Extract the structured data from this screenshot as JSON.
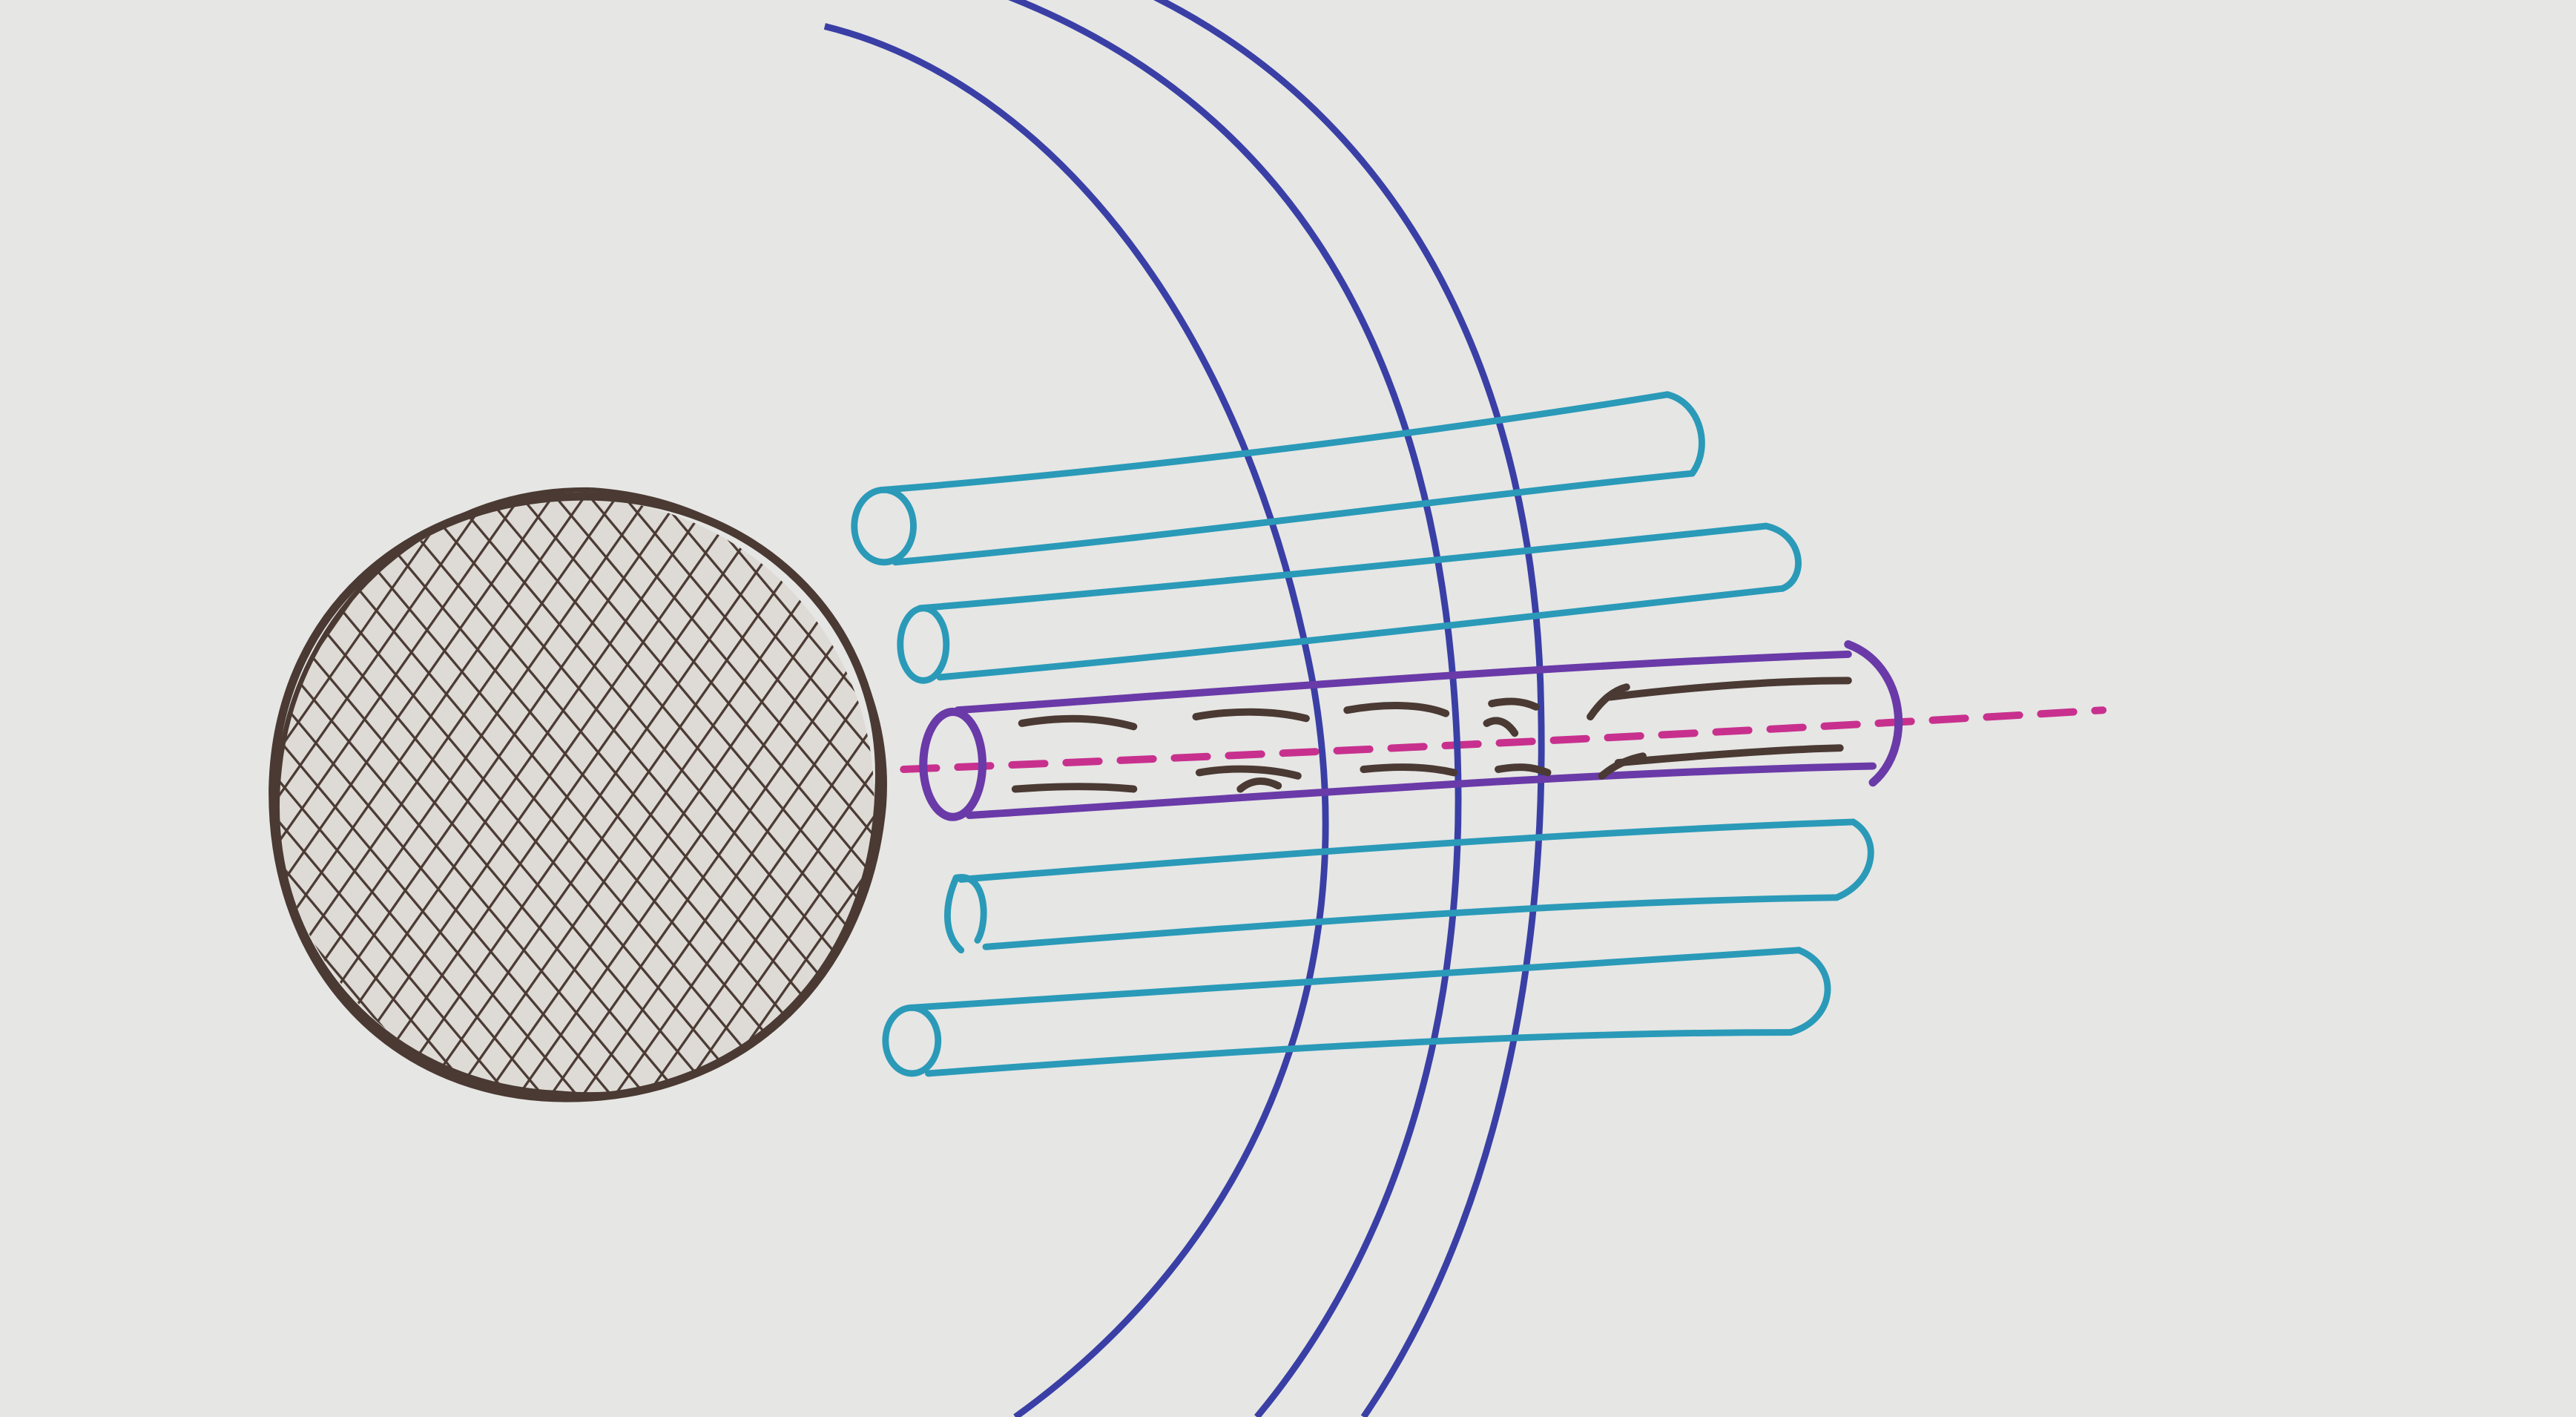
{
  "diagram": {
    "background_color": "#e6e6e4",
    "palette": {
      "brown_ink": "#4a3a33",
      "navy_ink": "#3a3fa6",
      "teal_ink": "#2a9ab8",
      "purple_ink": "#6a3aa8",
      "magenta_ink": "#c8308e"
    },
    "nodes": [
      {
        "name": "crosshatched-sphere",
        "kind": "sphere",
        "fill": "crosshatch"
      },
      {
        "name": "outer-membrane-arc",
        "kind": "arc"
      },
      {
        "name": "inner-membrane-arc",
        "kind": "arc"
      },
      {
        "name": "tube-1",
        "kind": "open-tube"
      },
      {
        "name": "tube-2",
        "kind": "open-tube"
      },
      {
        "name": "central-tube",
        "kind": "open-tube",
        "contents": "bidirectional-arrows"
      },
      {
        "name": "tube-4",
        "kind": "open-tube"
      },
      {
        "name": "tube-5",
        "kind": "open-tube"
      }
    ],
    "edges": [
      {
        "name": "central-axis",
        "kind": "dashed-line",
        "from": "crosshatched-sphere",
        "through": "central-tube"
      }
    ],
    "labels": []
  }
}
